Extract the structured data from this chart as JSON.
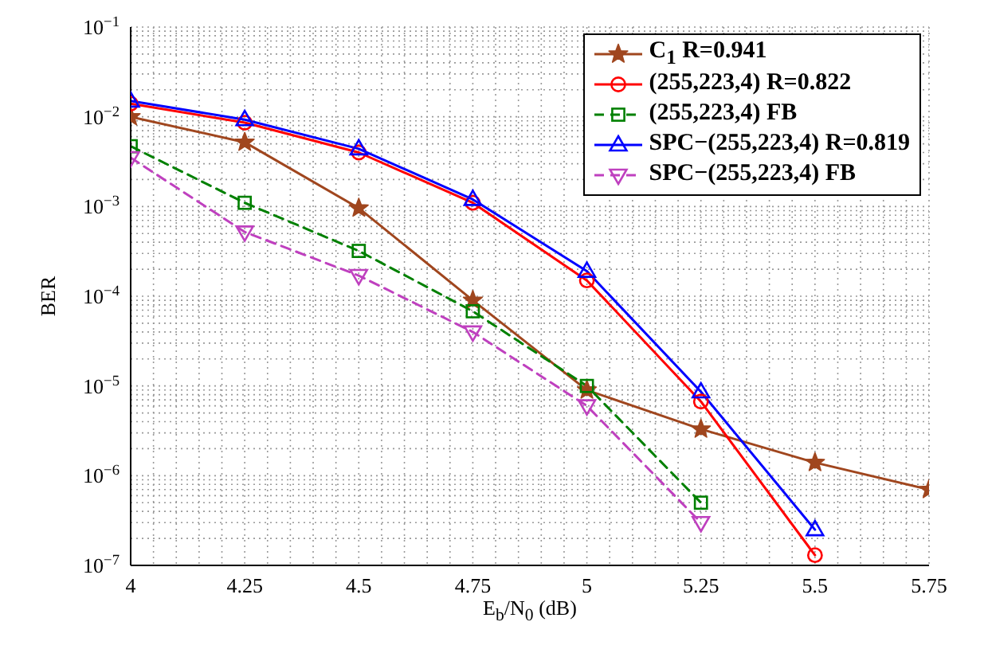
{
  "chart_data": {
    "type": "line",
    "xlabel": "E$_{b}$/N$_{0}$ (dB)",
    "ylabel": "BER",
    "x": [
      4,
      4.25,
      4.5,
      4.75,
      5,
      5.25,
      5.5,
      5.75
    ],
    "series": [
      {
        "name": "C$_{1}$ R=0.941",
        "color": "#a0461e",
        "marker": "star",
        "line_style": "solid",
        "values": [
          0.01,
          0.0052,
          0.00096,
          9e-05,
          9e-06,
          3.3e-06,
          1.4e-06,
          7e-07
        ]
      },
      {
        "name": "(255,223,4) R=0.822",
        "color": "#ff0000",
        "marker": "circle",
        "line_style": "solid",
        "values": [
          0.014,
          0.0086,
          0.004,
          0.0011,
          0.00015,
          6.7e-06,
          1.3e-07,
          null
        ]
      },
      {
        "name": "(255,223,4) FB",
        "color": "#008000",
        "marker": "square",
        "line_style": "dashed",
        "values": [
          0.0047,
          0.0011,
          0.00032,
          6.8e-05,
          1e-05,
          5e-07,
          null,
          null
        ]
      },
      {
        "name": "SPC−(255,223,4) R=0.819",
        "color": "#0000ff",
        "marker": "triangle",
        "line_style": "solid",
        "values": [
          0.015,
          0.0093,
          0.0044,
          0.0012,
          0.00019,
          8.6e-06,
          2.5e-07,
          null
        ]
      },
      {
        "name": "SPC−(255,223,4) FB",
        "color": "#bf40bf",
        "marker": "triangle_down",
        "line_style": "dashed",
        "values": [
          0.0035,
          0.00052,
          0.00017,
          4e-05,
          6e-06,
          3e-07,
          null,
          null
        ]
      }
    ],
    "xlim": [
      4,
      5.75
    ],
    "xticks": [
      4,
      {
        "value": 4.05,
        "label": null
      },
      {
        "value": 4.1,
        "label": null
      },
      {
        "value": 4.15,
        "label": null
      },
      {
        "value": 4.2,
        "label": null
      },
      4.25,
      {
        "value": 4.3,
        "label": null
      },
      {
        "value": 4.35,
        "label": null
      },
      {
        "value": 4.4,
        "label": null
      },
      {
        "value": 4.45,
        "label": null
      },
      4.5,
      {
        "value": 4.55,
        "label": null
      },
      {
        "value": 4.6,
        "label": null
      },
      {
        "value": 4.65,
        "label": null
      },
      {
        "value": 4.7,
        "label": null
      },
      4.75,
      {
        "value": 4.8,
        "label": null
      },
      {
        "value": 4.85,
        "label": null
      },
      {
        "value": 4.9,
        "label": null
      },
      {
        "value": 4.95,
        "label": null
      },
      5,
      {
        "value": 5.05,
        "label": null
      },
      {
        "value": 5.1,
        "label": null
      },
      {
        "value": 5.15,
        "label": null
      },
      {
        "value": 5.2,
        "label": null
      },
      5.25,
      {
        "value": 5.3,
        "label": null
      },
      {
        "value": 5.35,
        "label": null
      },
      {
        "value": 5.4,
        "label": null
      },
      {
        "value": 5.45,
        "label": null
      },
      5.5,
      {
        "value": 5.55,
        "label": null
      },
      {
        "value": 5.6,
        "label": null
      },
      {
        "value": 5.65,
        "label": null
      },
      {
        "value": 5.7,
        "label": null
      },
      5.75
    ],
    "ylim": [
      1e-07,
      0.1
    ],
    "yticks": [
      {
        "value": 1e-07,
        "label": "10$^{−7}$"
      },
      {
        "value": 2e-07,
        "label": null
      },
      {
        "value": 3e-07,
        "label": null
      },
      {
        "value": 4e-07,
        "label": null
      },
      {
        "value": 5e-07,
        "label": null
      },
      {
        "value": 6e-07,
        "label": null
      },
      {
        "value": 7e-07,
        "label": null
      },
      {
        "value": 8e-07,
        "label": null
      },
      {
        "value": 9e-07,
        "label": null
      },
      {
        "value": 1e-06,
        "label": "10$^{−6}$"
      },
      {
        "value": 2e-06,
        "label": null
      },
      {
        "value": 3e-06,
        "label": null
      },
      {
        "value": 4e-06,
        "label": null
      },
      {
        "value": 5e-06,
        "label": null
      },
      {
        "value": 6e-06,
        "label": null
      },
      {
        "value": 7e-06,
        "label": null
      },
      {
        "value": 8e-06,
        "label": null
      },
      {
        "value": 9e-06,
        "label": null
      },
      {
        "value": 1e-05,
        "label": "10$^{−5}$"
      },
      {
        "value": 2e-05,
        "label": null
      },
      {
        "value": 3e-05,
        "label": null
      },
      {
        "value": 4e-05,
        "label": null
      },
      {
        "value": 5e-05,
        "label": null
      },
      {
        "value": 6e-05,
        "label": null
      },
      {
        "value": 7e-05,
        "label": null
      },
      {
        "value": 8e-05,
        "label": null
      },
      {
        "value": 9e-05,
        "label": null
      },
      {
        "value": 0.0001,
        "label": "10$^{−4}$"
      },
      {
        "value": 0.0002,
        "label": null
      },
      {
        "value": 0.0003,
        "label": null
      },
      {
        "value": 0.0004,
        "label": null
      },
      {
        "value": 0.0005,
        "label": null
      },
      {
        "value": 0.0006,
        "label": null
      },
      {
        "value": 0.0007,
        "label": null
      },
      {
        "value": 0.0008,
        "label": null
      },
      {
        "value": 0.0009,
        "label": null
      },
      {
        "value": 0.001,
        "label": "10$^{−3}$"
      },
      {
        "value": 0.002,
        "label": null
      },
      {
        "value": 0.003,
        "label": null
      },
      {
        "value": 0.004,
        "label": null
      },
      {
        "value": 0.005,
        "label": null
      },
      {
        "value": 0.006,
        "label": null
      },
      {
        "value": 0.007,
        "label": null
      },
      {
        "value": 0.008,
        "label": null
      },
      {
        "value": 0.009,
        "label": null
      },
      {
        "value": 0.01,
        "label": "10$^{−2}$"
      },
      {
        "value": 0.02,
        "label": null
      },
      {
        "value": 0.03,
        "label": null
      },
      {
        "value": 0.04,
        "label": null
      },
      {
        "value": 0.05,
        "label": null
      },
      {
        "value": 0.06,
        "label": null
      },
      {
        "value": 0.07,
        "label": null
      },
      {
        "value": 0.08,
        "label": null
      },
      {
        "value": 0.09,
        "label": null
      },
      {
        "value": 0.1,
        "label": "10$^{−1}$"
      }
    ],
    "log": true,
    "grid": true,
    "legend": "top right"
  }
}
